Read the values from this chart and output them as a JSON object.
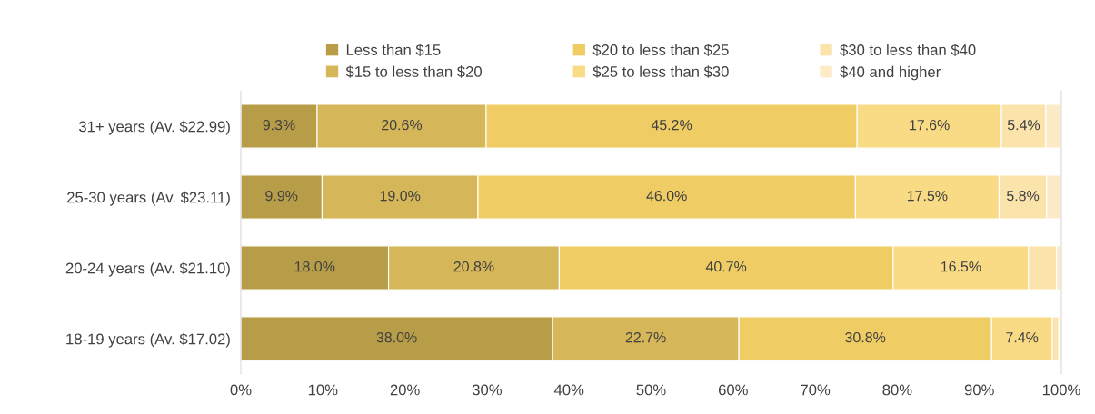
{
  "chart_data": {
    "type": "bar",
    "orientation": "horizontal",
    "stacked": true,
    "categories": [
      "31+ years (Av. $22.99)",
      "25-30 years (Av. $23.11)",
      "20-24 years (Av. $21.10)",
      "18-19 years (Av. $17.02)"
    ],
    "series": [
      {
        "name": "Less than $15",
        "color": "#b89d48",
        "values": [
          9.3,
          9.9,
          18.0,
          38.0
        ],
        "value_labels": [
          "9.3%",
          "9.9%",
          "18.0%",
          "38.0%"
        ]
      },
      {
        "name": "$15 to less than $20",
        "color": "#d5b658",
        "values": [
          20.6,
          19.0,
          20.8,
          22.7
        ],
        "value_labels": [
          "20.6%",
          "19.0%",
          "20.8%",
          "22.7%"
        ]
      },
      {
        "name": "$20 to less than $25",
        "color": "#f0cc64",
        "values": [
          45.2,
          46.0,
          40.7,
          30.8
        ],
        "value_labels": [
          "45.2%",
          "46.0%",
          "40.7%",
          "30.8%"
        ]
      },
      {
        "name": "$25 to less than $30",
        "color": "#f9da85",
        "values": [
          17.6,
          17.5,
          16.5,
          7.4
        ],
        "value_labels": [
          "17.6%",
          "17.5%",
          "16.5%",
          "7.4%"
        ]
      },
      {
        "name": "$30 to less than $40",
        "color": "#fbe4ab",
        "values": [
          5.4,
          5.8,
          3.4,
          0.8
        ],
        "value_labels": [
          "5.4%",
          "5.8%",
          null,
          null
        ]
      },
      {
        "name": "$40 and higher",
        "color": "#fdebc8",
        "values": [
          1.9,
          1.8,
          0.6,
          0.3
        ],
        "value_labels": [
          null,
          null,
          null,
          null
        ]
      }
    ],
    "xlim": [
      0,
      100
    ],
    "xticks": [
      {
        "value": 0,
        "label": "0%"
      },
      {
        "value": 10,
        "label": "10%"
      },
      {
        "value": 20,
        "label": "20%"
      },
      {
        "value": 30,
        "label": "30%"
      },
      {
        "value": 40,
        "label": "40%"
      },
      {
        "value": 50,
        "label": "50%"
      },
      {
        "value": 60,
        "label": "60%"
      },
      {
        "value": 70,
        "label": "70%"
      },
      {
        "value": 80,
        "label": "80%"
      },
      {
        "value": 90,
        "label": "90%"
      },
      {
        "value": 100,
        "label": "100%"
      }
    ],
    "grid": false,
    "legend": "top"
  }
}
